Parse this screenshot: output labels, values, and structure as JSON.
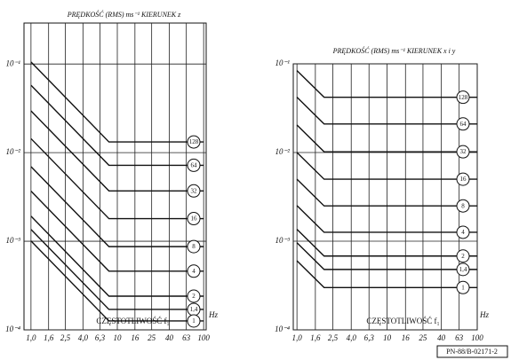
{
  "chart_data": [
    {
      "type": "line",
      "title": "PRĘDKOŚĆ (RMS) ms⁻¹ KIERUNEK z",
      "xlabel": "CZĘSTOTLIWOŚĆ f₁",
      "xunit": "Hz",
      "x": [
        1,
        8,
        100
      ],
      "xscale": "log",
      "yscale": "log",
      "grid": true,
      "color": "#111",
      "xlim": [
        0.83,
        107
      ],
      "ylim": [
        0.0001,
        0.29
      ],
      "xticks": [
        {
          "value": 1,
          "label": "1,0"
        },
        {
          "value": 1.6,
          "label": "1,6"
        },
        {
          "value": 2.5,
          "label": "2,5"
        },
        {
          "value": 4,
          "label": "4,0"
        },
        {
          "value": 6.3,
          "label": "6,3"
        },
        10,
        16,
        25,
        40,
        63,
        100
      ],
      "yticks": [
        {
          "value": 0.1,
          "label": "10⁻¹"
        },
        {
          "value": 0.01,
          "label": "10⁻²"
        },
        {
          "value": 0.001,
          "label": "10⁻³"
        },
        {
          "value": 0.0001,
          "label": "10⁻⁴"
        }
      ],
      "series": [
        {
          "name": "128",
          "values": [
            0.1056,
            0.0132,
            0.0132
          ]
        },
        {
          "name": "64",
          "values": [
            0.0576,
            0.0072,
            0.0072
          ]
        },
        {
          "name": "32",
          "values": [
            0.0296,
            0.0037,
            0.0037
          ]
        },
        {
          "name": "16",
          "values": [
            0.0144,
            0.0018,
            0.0018
          ]
        },
        {
          "name": "8",
          "values": [
            0.00696,
            0.00087,
            0.00087
          ]
        },
        {
          "name": "4",
          "values": [
            0.00368,
            0.00046,
            0.00046
          ]
        },
        {
          "name": "2",
          "values": [
            0.00192,
            0.00024,
            0.00024
          ]
        },
        {
          "name": "1,4",
          "values": [
            0.00136,
            0.00017,
            0.00017
          ]
        },
        {
          "name": "1",
          "values": [
            0.001008,
            0.000126,
            0.000126
          ]
        }
      ]
    },
    {
      "type": "line",
      "title": "PRĘDKOŚĆ (RMS) ms⁻¹ KIERUNEK x i y",
      "xlabel": "CZĘSTOTLIWOŚĆ f₁",
      "xunit": "Hz",
      "x": [
        1,
        2,
        100
      ],
      "xscale": "log",
      "yscale": "log",
      "grid": true,
      "color": "#111",
      "xlim": [
        0.91,
        100
      ],
      "ylim": [
        0.0001,
        0.1
      ],
      "xticks": [
        {
          "value": 1,
          "label": "1,0"
        },
        {
          "value": 1.6,
          "label": "1,6"
        },
        {
          "value": 2.5,
          "label": "2,5"
        },
        {
          "value": 4,
          "label": "4,0"
        },
        {
          "value": 6.3,
          "label": "6,3"
        },
        10,
        16,
        25,
        40,
        63,
        100
      ],
      "yticks": [
        {
          "value": 0.1,
          "label": "10⁻¹"
        },
        {
          "value": 0.01,
          "label": "10⁻²"
        },
        {
          "value": 0.001,
          "label": "10⁻³"
        },
        {
          "value": 0.0001,
          "label": "10⁻⁴"
        }
      ],
      "series": [
        {
          "name": "128",
          "values": [
            0.084,
            0.042,
            0.042
          ]
        },
        {
          "name": "64",
          "values": [
            0.042,
            0.021,
            0.021
          ]
        },
        {
          "name": "32",
          "values": [
            0.0204,
            0.0102,
            0.0102
          ]
        },
        {
          "name": "16",
          "values": [
            0.01,
            0.005,
            0.005
          ]
        },
        {
          "name": "8",
          "values": [
            0.005,
            0.0025,
            0.0025
          ]
        },
        {
          "name": "4",
          "values": [
            0.00252,
            0.00126,
            0.00126
          ]
        },
        {
          "name": "2",
          "values": [
            0.00136,
            0.00068,
            0.00068
          ]
        },
        {
          "name": "1,4",
          "values": [
            0.00096,
            0.00048,
            0.00048
          ]
        },
        {
          "name": "1",
          "values": [
            0.0006,
            0.0003,
            0.0003
          ]
        }
      ]
    }
  ],
  "footer": "PN-88/B-02171-2"
}
